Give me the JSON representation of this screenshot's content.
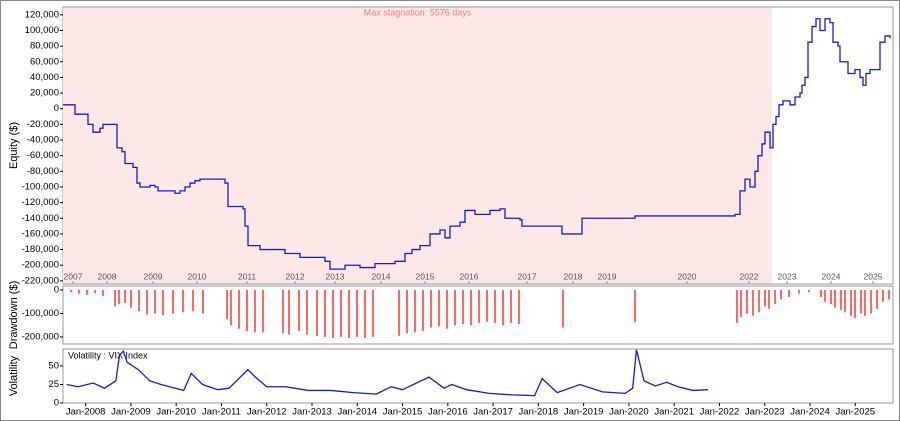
{
  "chart_data": [
    {
      "type": "line",
      "step": true,
      "y_label": "Equity ($)",
      "color": "#1a1acc",
      "annotation": "Max stagnation: 5576 days",
      "stagnation_xrange": [
        0,
        354.5
      ],
      "stagnation_color": "#fde8e8",
      "xlim": [
        0,
        415
      ],
      "ylim": [
        -224000,
        130000
      ],
      "xticks": [
        {
          "value": 5,
          "label": "2007"
        },
        {
          "value": 22,
          "label": "2008"
        },
        {
          "value": 45,
          "label": "2009"
        },
        {
          "value": 67,
          "label": "2010"
        },
        {
          "value": 92,
          "label": "2011"
        },
        {
          "value": 116,
          "label": "2012"
        },
        {
          "value": 136,
          "label": "2013"
        },
        {
          "value": 159,
          "label": "2014"
        },
        {
          "value": 181,
          "label": "2015"
        },
        {
          "value": 203,
          "label": "2016"
        },
        {
          "value": 232,
          "label": "2017"
        },
        {
          "value": 255,
          "label": "2018"
        },
        {
          "value": 272,
          "label": "2019"
        },
        {
          "value": 312,
          "label": "2020"
        },
        {
          "value": 343,
          "label": "2022"
        },
        {
          "value": 362,
          "label": "2023"
        },
        {
          "value": 384,
          "label": "2024"
        },
        {
          "value": 405,
          "label": "2025"
        }
      ],
      "yticks": [
        {
          "value": 120000,
          "label": "120,000"
        },
        {
          "value": 100000,
          "label": "100,000"
        },
        {
          "value": 80000,
          "label": "80,000"
        },
        {
          "value": 60000,
          "label": "60,000"
        },
        {
          "value": 40000,
          "label": "40,000"
        },
        {
          "value": 20000,
          "label": "20,000"
        },
        0,
        {
          "value": -20000,
          "label": "-20,000"
        },
        {
          "value": -40000,
          "label": "-40,000"
        },
        {
          "value": -60000,
          "label": "-60,000"
        },
        {
          "value": -80000,
          "label": "-80,000"
        },
        {
          "value": -100000,
          "label": "-100,000"
        },
        {
          "value": -120000,
          "label": "-120,000"
        },
        {
          "value": -140000,
          "label": "-140,000"
        },
        {
          "value": -160000,
          "label": "-160,000"
        },
        {
          "value": -180000,
          "label": "-180,000"
        },
        {
          "value": -200000,
          "label": "-200,000"
        },
        {
          "value": -220000,
          "label": "-220,000"
        }
      ],
      "x": [
        0,
        6,
        12.5,
        15,
        18.5,
        20,
        27,
        29.5,
        31,
        35,
        37,
        38.5,
        43.5,
        46,
        47.5,
        56,
        58.5,
        61,
        63.5,
        66,
        68.5,
        81,
        82.5,
        90,
        91,
        92.5,
        98.5,
        111,
        118.5,
        131,
        133.5,
        141,
        148.5,
        156,
        166,
        171,
        174.5,
        178.5,
        183.5,
        188.5,
        191,
        193.5,
        198.5,
        201,
        206,
        213.5,
        218.5,
        221,
        228.5,
        229.5,
        249.5,
        259.5,
        286,
        336,
        338.5,
        341,
        343.5,
        346,
        347.5,
        349.5,
        351,
        353.5,
        355,
        356.5,
        358,
        360,
        363.5,
        366,
        368.5,
        369.5,
        371,
        372.5,
        374.5,
        376.5,
        378.5,
        381,
        383.5,
        385,
        387.5,
        388.5,
        392.5,
        396,
        398.5,
        400,
        401.5,
        403.5,
        408.5,
        411,
        413.5
      ],
      "values": [
        5000,
        -7000,
        -20000,
        -30000,
        -25000,
        -20000,
        -50000,
        -55000,
        -70000,
        -75000,
        -95000,
        -100000,
        -98000,
        -100000,
        -105000,
        -108000,
        -105000,
        -100000,
        -95000,
        -92000,
        -90000,
        -95000,
        -125000,
        -128000,
        -150000,
        -175000,
        -180000,
        -185000,
        -190000,
        -195000,
        -205000,
        -200000,
        -203000,
        -198000,
        -195000,
        -185000,
        -180000,
        -175000,
        -160000,
        -155000,
        -165000,
        -150000,
        -145000,
        -130000,
        -135000,
        -130000,
        -128000,
        -140000,
        -142000,
        -150000,
        -160000,
        -140000,
        -137000,
        -135000,
        -105000,
        -90000,
        -100000,
        -80000,
        -60000,
        -45000,
        -30000,
        -50000,
        -20000,
        -10000,
        5000,
        10000,
        5000,
        15000,
        20000,
        30000,
        40000,
        85000,
        105000,
        115000,
        100000,
        115000,
        110000,
        85000,
        80000,
        60000,
        45000,
        50000,
        40000,
        30000,
        45000,
        50000,
        85000,
        93000,
        90000
      ]
    },
    {
      "type": "bar",
      "y_label": "Drawdown ($)",
      "color": "#ff0000",
      "xlim": [
        0,
        415
      ],
      "ylim": [
        -230000,
        17000
      ],
      "yticks": [
        0,
        {
          "value": -100000,
          "label": "-100,000"
        },
        {
          "value": -200000,
          "label": "-200,000"
        }
      ],
      "x": [
        4,
        8,
        12,
        16,
        20,
        26,
        28,
        31,
        34,
        38,
        42,
        46,
        50,
        55,
        60,
        65,
        70,
        82,
        84,
        88,
        92,
        96,
        100,
        110,
        113,
        118,
        122,
        127,
        131,
        135,
        139,
        143,
        147,
        151,
        155,
        168,
        172,
        176,
        180,
        184,
        188,
        192,
        196,
        200,
        204,
        208,
        212,
        216,
        220,
        224,
        228,
        250,
        286,
        337,
        339,
        342,
        345,
        348,
        351,
        353,
        356,
        359,
        363,
        368,
        373,
        379,
        381,
        384,
        386,
        389,
        391,
        394,
        396,
        399,
        401,
        404,
        407,
        410,
        413
      ],
      "values": [
        -10000,
        -15000,
        -20000,
        -12000,
        -25000,
        -70000,
        -60000,
        -55000,
        -75000,
        -90000,
        -105000,
        -100000,
        -108000,
        -100000,
        -95000,
        -90000,
        -100000,
        -125000,
        -150000,
        -165000,
        -175000,
        -180000,
        -180000,
        -185000,
        -190000,
        -175000,
        -190000,
        -195000,
        -200000,
        -205000,
        -200000,
        -205000,
        -200000,
        -205000,
        -200000,
        -195000,
        -185000,
        -180000,
        -175000,
        -160000,
        -155000,
        -165000,
        -150000,
        -145000,
        -150000,
        -140000,
        -135000,
        -140000,
        -150000,
        -140000,
        -145000,
        -160000,
        -137000,
        -140000,
        -115000,
        -100000,
        -110000,
        -95000,
        -70000,
        -80000,
        -60000,
        -40000,
        -30000,
        -15000,
        -10000,
        -30000,
        -50000,
        -60000,
        -75000,
        -85000,
        -95000,
        -110000,
        -120000,
        -100000,
        -110000,
        -100000,
        -80000,
        -50000,
        -40000
      ]
    },
    {
      "type": "line",
      "y_label": "Volatility",
      "legend": "Volatility : VIX Index",
      "color": "#1a1acc",
      "xlim": [
        "2007-07",
        "2025-11"
      ],
      "ylim": [
        0,
        73
      ],
      "yticks": [
        0,
        25,
        50
      ],
      "xticks": [
        {
          "value": "2008-01",
          "label": "Jan-2008"
        },
        {
          "value": "2009-01",
          "label": "Jan-2009"
        },
        {
          "value": "2010-01",
          "label": "Jan-2010"
        },
        {
          "value": "2011-01",
          "label": "Jan-2011"
        },
        {
          "value": "2012-01",
          "label": "Jan-2012"
        },
        {
          "value": "2013-01",
          "label": "Jan-2013"
        },
        {
          "value": "2014-01",
          "label": "Jan-2014"
        },
        {
          "value": "2015-01",
          "label": "Jan-2015"
        },
        {
          "value": "2016-01",
          "label": "Jan-2016"
        },
        {
          "value": "2017-01",
          "label": "Jan-2017"
        },
        {
          "value": "2018-01",
          "label": "Jan-2018"
        },
        {
          "value": "2019-01",
          "label": "Jan-2019"
        },
        {
          "value": "2020-01",
          "label": "Jan-2020"
        },
        {
          "value": "2021-01",
          "label": "Jan-2021"
        },
        {
          "value": "2022-01",
          "label": "Jan-2022"
        },
        {
          "value": "2023-01",
          "label": "Jan-2023"
        },
        {
          "value": "2024-01",
          "label": "Jan-2024"
        },
        {
          "value": "2025-01",
          "label": "Jan-2025"
        }
      ],
      "x": [
        "2007-08",
        "2007-11",
        "2008-03",
        "2008-06",
        "2008-09",
        "2008-10",
        "2008-11",
        "2008-12",
        "2009-03",
        "2009-06",
        "2009-09",
        "2009-12",
        "2010-03",
        "2010-05",
        "2010-08",
        "2010-12",
        "2011-03",
        "2011-08",
        "2011-10",
        "2012-01",
        "2012-06",
        "2012-12",
        "2013-06",
        "2013-12",
        "2014-06",
        "2014-10",
        "2015-01",
        "2015-08",
        "2015-12",
        "2016-02",
        "2016-06",
        "2016-12",
        "2017-06",
        "2017-12",
        "2018-02",
        "2018-06",
        "2018-12",
        "2019-06",
        "2019-12",
        "2020-02",
        "2020-03",
        "2020-05",
        "2020-08",
        "2020-11",
        "2021-02",
        "2021-06",
        "2021-10"
      ],
      "values": [
        25,
        22,
        27,
        20,
        30,
        65,
        70,
        55,
        45,
        30,
        25,
        21,
        17,
        40,
        25,
        18,
        20,
        45,
        35,
        22,
        22,
        17,
        17,
        14,
        12,
        22,
        18,
        35,
        20,
        25,
        18,
        13,
        11,
        10,
        33,
        14,
        25,
        15,
        13,
        20,
        72,
        30,
        23,
        28,
        22,
        17,
        18
      ]
    }
  ]
}
